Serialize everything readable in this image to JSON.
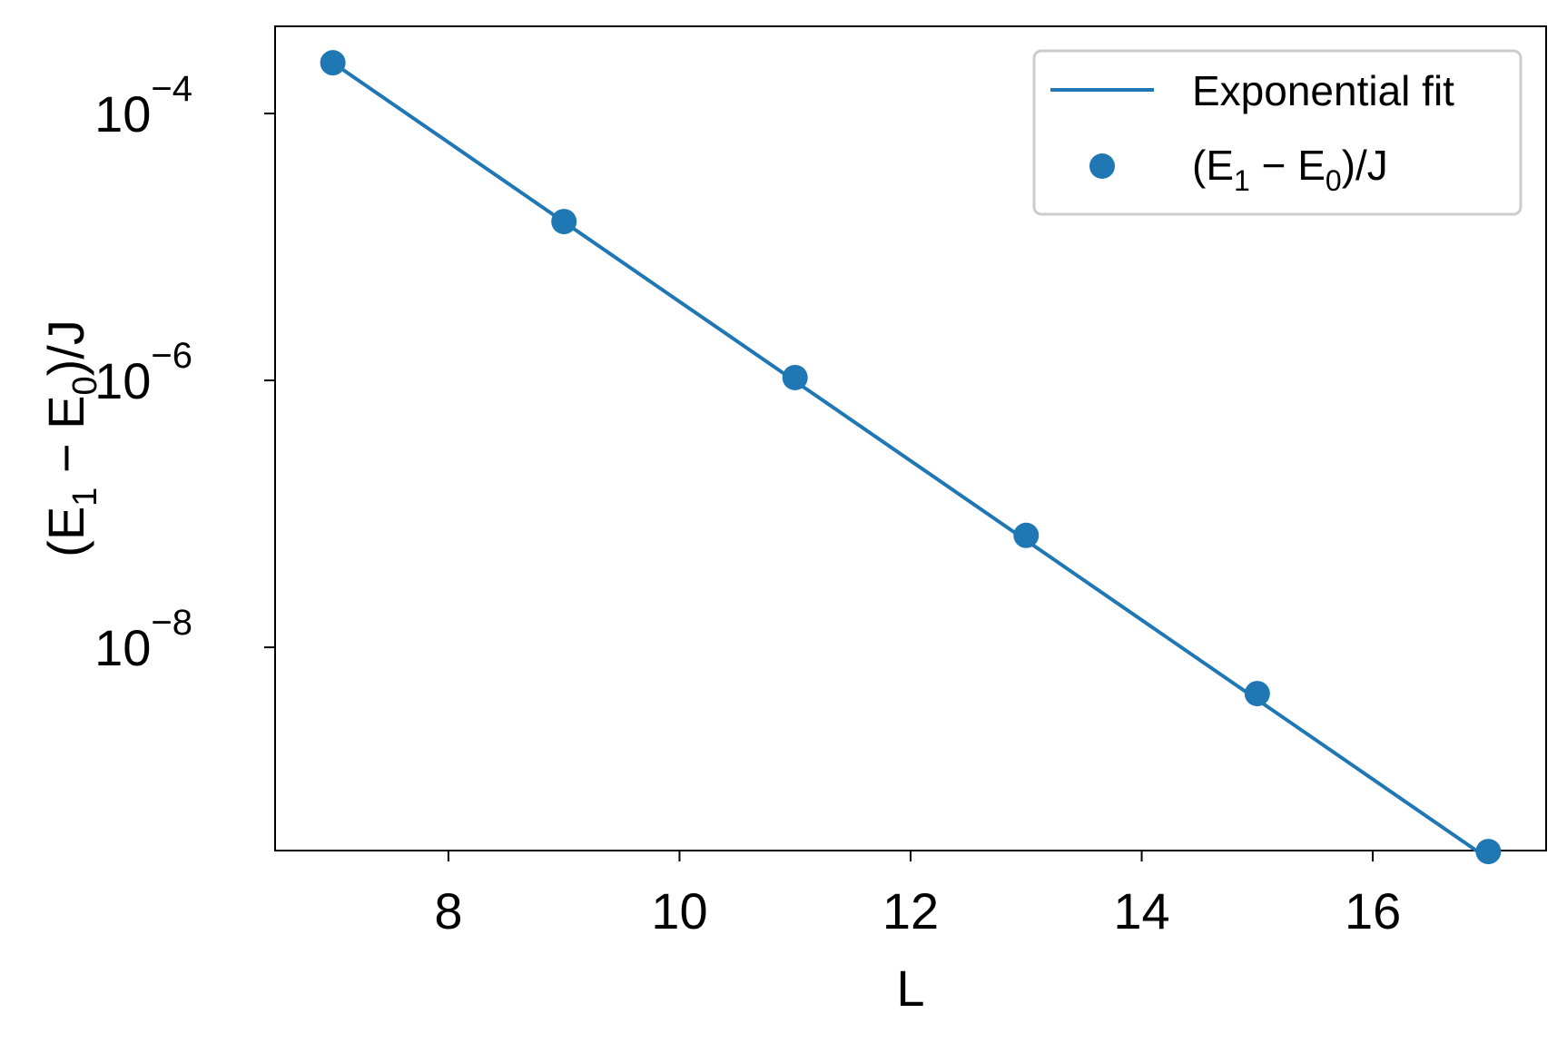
{
  "chart_data": {
    "type": "scatter",
    "xlabel": "L",
    "ylabel": {
      "open": "(E",
      "sub1": "1",
      "mid": " − E",
      "sub2": "0",
      "close": ")/J"
    },
    "x_ticks": [
      8,
      10,
      12,
      14,
      16
    ],
    "y_scale": "log",
    "y_ticks": [
      {
        "value": 0.0001,
        "base": "10",
        "exponent": "−4"
      },
      {
        "value": 1e-06,
        "base": "10",
        "exponent": "−6"
      },
      {
        "value": 1e-08,
        "base": "10",
        "exponent": "−8"
      }
    ],
    "xlim": [
      6.5,
      17.5
    ],
    "ylim": [
      3e-10,
      0.00045
    ],
    "grid": false,
    "legend_position": "top-right",
    "series": [
      {
        "name": "Exponential fit",
        "kind": "line",
        "x": [
          7,
          17
        ],
        "y": [
          0.00024,
          2.6e-10
        ],
        "color": "#1f77b4"
      },
      {
        "name": {
          "open": "(E",
          "sub1": "1",
          "mid": " − E",
          "sub2": "0",
          "close": ")/J"
        },
        "kind": "scatter",
        "x": [
          7,
          9,
          11,
          13,
          15,
          17
        ],
        "y": [
          0.00024,
          1.55e-05,
          1.05e-06,
          6.9e-08,
          4.5e-09,
          2.95e-10
        ],
        "color": "#1f77b4"
      }
    ]
  }
}
